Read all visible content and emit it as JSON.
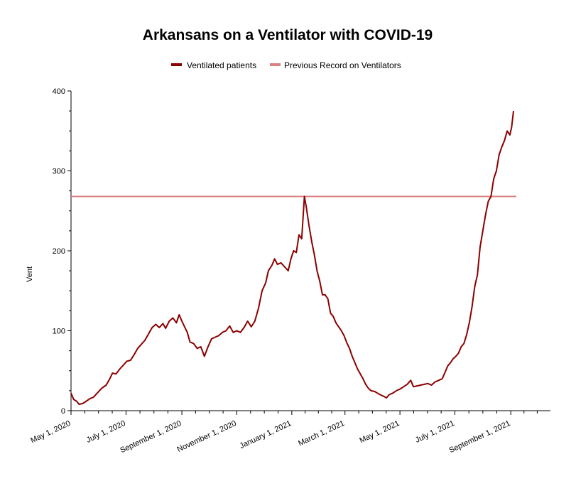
{
  "chart_data": {
    "type": "line",
    "title": "Arkansans on a Ventilator with COVID-19",
    "xlabel": "",
    "ylabel": "Vent",
    "ylim": [
      0,
      400
    ],
    "xlim": [
      "2020-05-01",
      "2021-10-15"
    ],
    "yticks": [
      0,
      100,
      200,
      300,
      400
    ],
    "xticks": [
      "2020-05-01",
      "2020-07-01",
      "2020-09-01",
      "2020-11-01",
      "2021-01-01",
      "2021-03-01",
      "2021-05-01",
      "2021-07-01",
      "2021-09-01"
    ],
    "xtick_labels": [
      "May 1, 2020",
      "July 1, 2020",
      "September 1, 2020",
      "November 1, 2020",
      "January 1, 2021",
      "March 1, 2021",
      "May 1, 2021",
      "July 1, 2021",
      "September 1, 2021"
    ],
    "grid": false,
    "legend_position": "top",
    "series": [
      {
        "name": "Ventilated patients",
        "color": "#8b0000",
        "points": [
          [
            "2020-05-01",
            22
          ],
          [
            "2020-05-04",
            14
          ],
          [
            "2020-05-07",
            12
          ],
          [
            "2020-05-10",
            8
          ],
          [
            "2020-05-14",
            9
          ],
          [
            "2020-05-18",
            12
          ],
          [
            "2020-05-22",
            15
          ],
          [
            "2020-05-26",
            17
          ],
          [
            "2020-05-30",
            22
          ],
          [
            "2020-06-04",
            28
          ],
          [
            "2020-06-09",
            32
          ],
          [
            "2020-06-13",
            40
          ],
          [
            "2020-06-16",
            47
          ],
          [
            "2020-06-20",
            46
          ],
          [
            "2020-06-24",
            52
          ],
          [
            "2020-06-28",
            57
          ],
          [
            "2020-07-02",
            62
          ],
          [
            "2020-07-06",
            63
          ],
          [
            "2020-07-10",
            70
          ],
          [
            "2020-07-14",
            78
          ],
          [
            "2020-07-18",
            83
          ],
          [
            "2020-07-22",
            88
          ],
          [
            "2020-07-26",
            96
          ],
          [
            "2020-07-30",
            104
          ],
          [
            "2020-08-03",
            108
          ],
          [
            "2020-08-07",
            104
          ],
          [
            "2020-08-11",
            109
          ],
          [
            "2020-08-14",
            103
          ],
          [
            "2020-08-18",
            112
          ],
          [
            "2020-08-22",
            116
          ],
          [
            "2020-08-26",
            110
          ],
          [
            "2020-08-29",
            120
          ],
          [
            "2020-09-01",
            112
          ],
          [
            "2020-09-04",
            105
          ],
          [
            "2020-09-07",
            98
          ],
          [
            "2020-09-10",
            86
          ],
          [
            "2020-09-14",
            84
          ],
          [
            "2020-09-18",
            78
          ],
          [
            "2020-09-22",
            80
          ],
          [
            "2020-09-26",
            68
          ],
          [
            "2020-09-30",
            80
          ],
          [
            "2020-10-04",
            90
          ],
          [
            "2020-10-08",
            92
          ],
          [
            "2020-10-12",
            94
          ],
          [
            "2020-10-16",
            98
          ],
          [
            "2020-10-20",
            100
          ],
          [
            "2020-10-24",
            106
          ],
          [
            "2020-10-28",
            98
          ],
          [
            "2020-11-01",
            100
          ],
          [
            "2020-11-05",
            98
          ],
          [
            "2020-11-09",
            104
          ],
          [
            "2020-11-13",
            112
          ],
          [
            "2020-11-17",
            105
          ],
          [
            "2020-11-21",
            112
          ],
          [
            "2020-11-25",
            128
          ],
          [
            "2020-11-29",
            150
          ],
          [
            "2020-12-03",
            160
          ],
          [
            "2020-12-06",
            175
          ],
          [
            "2020-12-10",
            182
          ],
          [
            "2020-12-13",
            190
          ],
          [
            "2020-12-16",
            183
          ],
          [
            "2020-12-20",
            185
          ],
          [
            "2020-12-24",
            180
          ],
          [
            "2020-12-28",
            175
          ],
          [
            "2020-12-31",
            190
          ],
          [
            "2021-01-03",
            200
          ],
          [
            "2021-01-06",
            198
          ],
          [
            "2021-01-09",
            220
          ],
          [
            "2021-01-12",
            215
          ],
          [
            "2021-01-14",
            250
          ],
          [
            "2021-01-15",
            268
          ],
          [
            "2021-01-17",
            255
          ],
          [
            "2021-01-20",
            232
          ],
          [
            "2021-01-23",
            212
          ],
          [
            "2021-01-26",
            195
          ],
          [
            "2021-01-29",
            175
          ],
          [
            "2021-02-01",
            162
          ],
          [
            "2021-02-04",
            145
          ],
          [
            "2021-02-07",
            145
          ],
          [
            "2021-02-10",
            140
          ],
          [
            "2021-02-13",
            122
          ],
          [
            "2021-02-16",
            118
          ],
          [
            "2021-02-19",
            110
          ],
          [
            "2021-02-22",
            105
          ],
          [
            "2021-02-25",
            100
          ],
          [
            "2021-02-28",
            94
          ],
          [
            "2021-03-03",
            85
          ],
          [
            "2021-03-06",
            78
          ],
          [
            "2021-03-09",
            68
          ],
          [
            "2021-03-12",
            60
          ],
          [
            "2021-03-15",
            52
          ],
          [
            "2021-03-18",
            46
          ],
          [
            "2021-03-21",
            40
          ],
          [
            "2021-03-24",
            33
          ],
          [
            "2021-03-27",
            28
          ],
          [
            "2021-03-30",
            25
          ],
          [
            "2021-04-03",
            24
          ],
          [
            "2021-04-06",
            22
          ],
          [
            "2021-04-09",
            20
          ],
          [
            "2021-04-13",
            18
          ],
          [
            "2021-04-16",
            16
          ],
          [
            "2021-04-19",
            20
          ],
          [
            "2021-04-23",
            22
          ],
          [
            "2021-04-27",
            25
          ],
          [
            "2021-05-01",
            27
          ],
          [
            "2021-05-05",
            30
          ],
          [
            "2021-05-09",
            33
          ],
          [
            "2021-05-13",
            38
          ],
          [
            "2021-05-16",
            30
          ],
          [
            "2021-05-20",
            31
          ],
          [
            "2021-05-24",
            32
          ],
          [
            "2021-05-28",
            33
          ],
          [
            "2021-06-01",
            34
          ],
          [
            "2021-06-05",
            32
          ],
          [
            "2021-06-09",
            36
          ],
          [
            "2021-06-13",
            38
          ],
          [
            "2021-06-17",
            40
          ],
          [
            "2021-06-20",
            48
          ],
          [
            "2021-06-23",
            56
          ],
          [
            "2021-06-26",
            60
          ],
          [
            "2021-06-29",
            65
          ],
          [
            "2021-07-02",
            68
          ],
          [
            "2021-07-05",
            72
          ],
          [
            "2021-07-08",
            80
          ],
          [
            "2021-07-11",
            84
          ],
          [
            "2021-07-14",
            95
          ],
          [
            "2021-07-17",
            110
          ],
          [
            "2021-07-20",
            130
          ],
          [
            "2021-07-23",
            155
          ],
          [
            "2021-07-26",
            170
          ],
          [
            "2021-07-29",
            205
          ],
          [
            "2021-08-01",
            225
          ],
          [
            "2021-08-04",
            245
          ],
          [
            "2021-08-07",
            262
          ],
          [
            "2021-08-10",
            268
          ],
          [
            "2021-08-13",
            290
          ],
          [
            "2021-08-16",
            300
          ],
          [
            "2021-08-19",
            320
          ],
          [
            "2021-08-22",
            330
          ],
          [
            "2021-08-25",
            338
          ],
          [
            "2021-08-28",
            350
          ],
          [
            "2021-08-31",
            345
          ],
          [
            "2021-09-02",
            355
          ],
          [
            "2021-09-04",
            375
          ]
        ]
      },
      {
        "name": "Previous Record on Ventilators",
        "color": "#d98080",
        "constant": 268,
        "x_range": [
          "2020-05-01",
          "2021-09-04"
        ]
      }
    ]
  }
}
